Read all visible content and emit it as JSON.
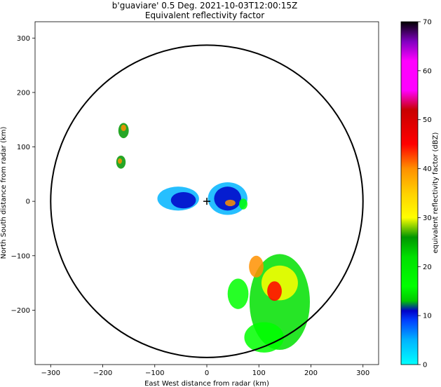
{
  "chart_data": {
    "type": "heatmap",
    "title": "b'guaviare' 0.5 Deg. 2021-10-03T12:00:15Z",
    "subtitle": "Equivalent reflectivity factor",
    "xlabel": "East West distance from radar (km)",
    "ylabel": "North South distance from radar (km)",
    "xlim": [
      -330,
      330
    ],
    "ylim": [
      -300,
      330
    ],
    "x_ticks": [
      -300,
      -200,
      -100,
      0,
      100,
      200,
      300
    ],
    "y_ticks": [
      -200,
      -100,
      0,
      100,
      200,
      300
    ],
    "x_tick_labels": [
      "−300",
      "−200",
      "−100",
      "0",
      "100",
      "200",
      "300"
    ],
    "y_tick_labels": [
      "−200",
      "−100",
      "0",
      "100",
      "200",
      "300"
    ],
    "range_ring_km": 300,
    "radar_location": [
      0,
      0
    ],
    "grid": false,
    "colorbar": {
      "label": "equivalent reflectivity factor (dBZ)",
      "min": 0,
      "max": 70,
      "ticks": [
        0,
        10,
        20,
        30,
        40,
        50,
        60,
        70
      ],
      "tick_labels": [
        "0",
        "10",
        "20",
        "30",
        "40",
        "50",
        "60",
        "70"
      ],
      "colormap_stops": [
        {
          "dbz": 0,
          "color": "#00ffff"
        },
        {
          "dbz": 5,
          "color": "#00b4ff"
        },
        {
          "dbz": 9,
          "color": "#0040ff"
        },
        {
          "dbz": 11,
          "color": "#0000c8"
        },
        {
          "dbz": 13,
          "color": "#00c800"
        },
        {
          "dbz": 16,
          "color": "#00ff00"
        },
        {
          "dbz": 22,
          "color": "#00e000"
        },
        {
          "dbz": 26,
          "color": "#009600"
        },
        {
          "dbz": 30,
          "color": "#ffff00"
        },
        {
          "dbz": 35,
          "color": "#ffd000"
        },
        {
          "dbz": 40,
          "color": "#ff9000"
        },
        {
          "dbz": 45,
          "color": "#ff0000"
        },
        {
          "dbz": 52,
          "color": "#c80000"
        },
        {
          "dbz": 56,
          "color": "#ff00ff"
        },
        {
          "dbz": 62,
          "color": "#ff00ff"
        },
        {
          "dbz": 66,
          "color": "#8000c0"
        },
        {
          "dbz": 70,
          "color": "#000000"
        }
      ]
    },
    "echo_regions": [
      {
        "x": 140,
        "y": -185,
        "rx": 58,
        "ry": 88,
        "dbz": 22
      },
      {
        "x": 140,
        "y": -150,
        "rx": 35,
        "ry": 32,
        "dbz": 32
      },
      {
        "x": 130,
        "y": -165,
        "rx": 14,
        "ry": 18,
        "dbz": 46
      },
      {
        "x": 95,
        "y": -120,
        "rx": 14,
        "ry": 20,
        "dbz": 40
      },
      {
        "x": 110,
        "y": -250,
        "rx": 38,
        "ry": 28,
        "dbz": 20
      },
      {
        "x": 60,
        "y": -170,
        "rx": 20,
        "ry": 28,
        "dbz": 16
      },
      {
        "x": 40,
        "y": 5,
        "rx": 38,
        "ry": 30,
        "dbz": 8
      },
      {
        "x": 40,
        "y": 5,
        "rx": 26,
        "ry": 22,
        "dbz": 11
      },
      {
        "x": 45,
        "y": -3,
        "rx": 10,
        "ry": 6,
        "dbz": 40
      },
      {
        "x": 70,
        "y": -5,
        "rx": 8,
        "ry": 10,
        "dbz": 20
      },
      {
        "x": -55,
        "y": 5,
        "rx": 40,
        "ry": 22,
        "dbz": 8
      },
      {
        "x": -45,
        "y": 2,
        "rx": 24,
        "ry": 15,
        "dbz": 11
      },
      {
        "x": -160,
        "y": 130,
        "rx": 10,
        "ry": 14,
        "dbz": 28
      },
      {
        "x": -160,
        "y": 135,
        "rx": 5,
        "ry": 6,
        "dbz": 42
      },
      {
        "x": -165,
        "y": 72,
        "rx": 9,
        "ry": 12,
        "dbz": 26
      },
      {
        "x": -167,
        "y": 74,
        "rx": 4,
        "ry": 5,
        "dbz": 42
      }
    ]
  }
}
